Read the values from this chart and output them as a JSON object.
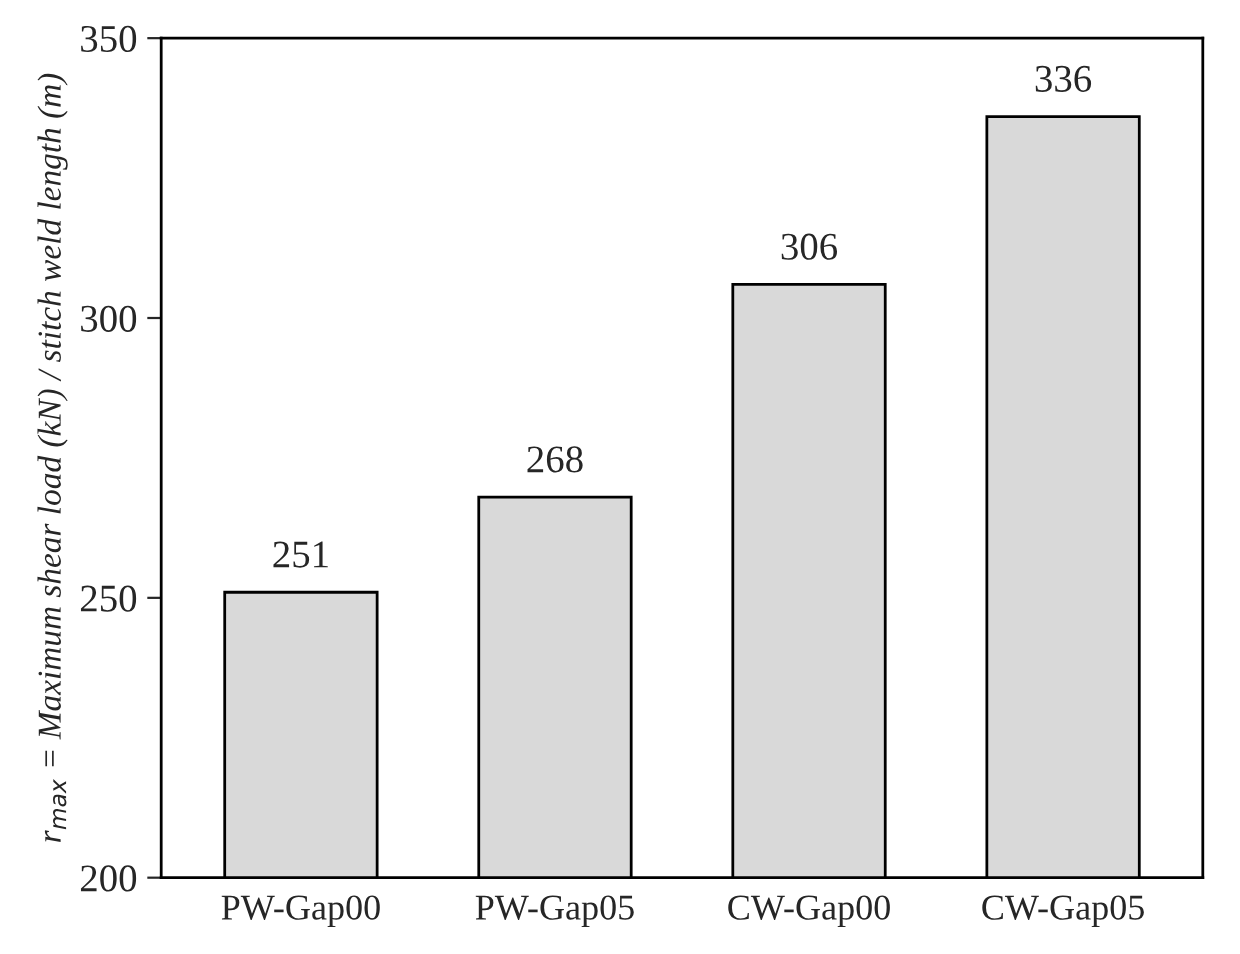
{
  "chart_data": {
    "type": "bar",
    "ylabel": "r$_{max}$ = Maximum shear load (kN) / stitch weld length (m)",
    "categories": [
      "PW-Gap00",
      "PW-Gap05",
      "CW-Gap00",
      "CW-Gap05"
    ],
    "values": [
      251,
      268,
      306,
      336
    ],
    "color": "#d9d9d9",
    "ylim": [
      200,
      350
    ],
    "yticks": [
      200,
      250,
      300,
      350
    ],
    "data_labels": true,
    "grid": false,
    "legend": false
  }
}
